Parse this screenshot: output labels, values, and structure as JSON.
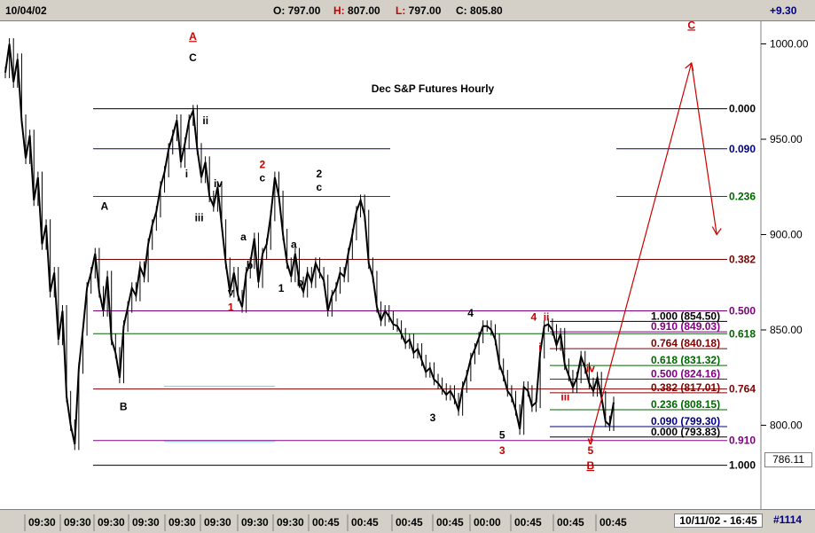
{
  "toolbar": {
    "date": "10/04/02",
    "open_label": "O:",
    "open": "797.00",
    "high_label": "H:",
    "high": "807.00",
    "low_label": "L:",
    "low": "797.00",
    "close_label": "C:",
    "close": "805.80",
    "change": "+9.30"
  },
  "status": {
    "last_price": "786.11",
    "date_range": "10/11/02 - 16:45",
    "bar_count": "#1114"
  },
  "chart_data": {
    "type": "line",
    "title": "Dec S&P Futures Hourly",
    "ylim": [
      770,
      1010
    ],
    "ytick_values": [
      800,
      850,
      900,
      950,
      1000
    ],
    "ytick_labels": [
      "800.00",
      "850.00",
      "900.00",
      "950.00",
      "1000.00"
    ],
    "xtick_labels": [
      "09:30",
      "09:30",
      "09:30",
      "09:30",
      "09:30",
      "09:30",
      "09:30",
      "09:30",
      "00:45",
      "00:45",
      "00:45",
      "00:45",
      "00:00",
      "00:45",
      "00:45",
      "00:45"
    ],
    "series": [
      {
        "values": [
          985,
          1000,
          980,
          992,
          960,
          940,
          952,
          918,
          930,
          895,
          905,
          870,
          880,
          845,
          860,
          815,
          800,
          790,
          830,
          850,
          872,
          880,
          890,
          870,
          860,
          878,
          845,
          838,
          825,
          852,
          862,
          872,
          868,
          883,
          878,
          895,
          905,
          912,
          925,
          933,
          945,
          952,
          960,
          938,
          948,
          960,
          965,
          945,
          930,
          938,
          920,
          915,
          925,
          905,
          885,
          870,
          880,
          868,
          862,
          880,
          885,
          898,
          875,
          890,
          895,
          910,
          930,
          920,
          900,
          885,
          878,
          890,
          875,
          870,
          880,
          875,
          885,
          880,
          876,
          860,
          868,
          872,
          880,
          878,
          890,
          900,
          912,
          918,
          910,
          885,
          878,
          862,
          855,
          860,
          857,
          853,
          852,
          848,
          843,
          845,
          838,
          840,
          834,
          828,
          830,
          824,
          822,
          819,
          816,
          818,
          814,
          808,
          820,
          826,
          835,
          840,
          846,
          852,
          852,
          850,
          845,
          832,
          826,
          818,
          815,
          808,
          798,
          820,
          818,
          810,
          812,
          838,
          852,
          853,
          850,
          842,
          848,
          832,
          826,
          820,
          825,
          836,
          830,
          822,
          818,
          825,
          815,
          802,
          800,
          812
        ]
      }
    ],
    "fib_retracement": [
      {
        "label": "0.000",
        "price": 966,
        "color": "#000000"
      },
      {
        "label": "0.090",
        "price": 945,
        "color": "#000080"
      },
      {
        "label": "0.236",
        "price": 920,
        "color": "#006600"
      },
      {
        "label": "0.382",
        "price": 887,
        "color": "#800000"
      },
      {
        "label": "0.500",
        "price": 860,
        "color": "#800080"
      },
      {
        "label": "0.618",
        "price": 848,
        "color": "#006600"
      },
      {
        "label": "0.764",
        "price": 819,
        "color": "#800000"
      },
      {
        "label": "0.910",
        "price": 792,
        "color": "#800080"
      },
      {
        "label": "1.000",
        "price": 779,
        "color": "#000000"
      }
    ],
    "fib_extension": [
      {
        "label": "1.000 (854.50)",
        "price": 854.5,
        "color": "#000000"
      },
      {
        "label": "0.910 (849.03)",
        "price": 849.03,
        "color": "#800080"
      },
      {
        "label": "0.764 (840.18)",
        "price": 840.18,
        "color": "#800000"
      },
      {
        "label": "0.618 (831.32)",
        "price": 831.32,
        "color": "#006600"
      },
      {
        "label": "0.500 (824.16)",
        "price": 824.16,
        "color": "#800080"
      },
      {
        "label": "0.382 (817.01)",
        "price": 817.01,
        "color": "#800000"
      },
      {
        "label": "0.236 (808.15)",
        "price": 808.15,
        "color": "#006600"
      },
      {
        "label": "0.090 (799.30)",
        "price": 799.3,
        "color": "#000080"
      },
      {
        "label": "0.000 (793.83)",
        "price": 793.83,
        "color": "#000000"
      }
    ],
    "wave_labels": [
      {
        "text": "A",
        "color": "#cc0000",
        "underline": true,
        "x": 30,
        "y": 1002
      },
      {
        "text": "C",
        "color": "#000000",
        "x": 30,
        "y": 991
      },
      {
        "text": "ii",
        "color": "#000000",
        "x": 32,
        "y": 958
      },
      {
        "text": "i",
        "color": "#000000",
        "x": 29,
        "y": 930
      },
      {
        "text": "iv",
        "color": "#000000",
        "x": 34,
        "y": 925
      },
      {
        "text": "iii",
        "color": "#000000",
        "x": 31,
        "y": 907
      },
      {
        "text": "A",
        "color": "#000000",
        "x": 16,
        "y": 913
      },
      {
        "text": "B",
        "color": "#000000",
        "x": 19,
        "y": 808
      },
      {
        "text": "v",
        "color": "#000000",
        "x": 36,
        "y": 868
      },
      {
        "text": "1",
        "color": "#cc0000",
        "x": 36,
        "y": 860
      },
      {
        "text": "2",
        "color": "#cc0000",
        "x": 41,
        "y": 935
      },
      {
        "text": "c",
        "color": "#000000",
        "x": 41,
        "y": 928
      },
      {
        "text": "a",
        "color": "#000000",
        "x": 38,
        "y": 897
      },
      {
        "text": "b",
        "color": "#000000",
        "x": 39,
        "y": 882
      },
      {
        "text": "a",
        "color": "#000000",
        "x": 46,
        "y": 893
      },
      {
        "text": "1",
        "color": "#000000",
        "x": 44,
        "y": 870
      },
      {
        "text": "b",
        "color": "#000000",
        "x": 47,
        "y": 873
      },
      {
        "text": "2",
        "color": "#000000",
        "x": 50,
        "y": 930
      },
      {
        "text": "c",
        "color": "#000000",
        "x": 50,
        "y": 923
      },
      {
        "text": "4",
        "color": "#000000",
        "x": 74,
        "y": 857
      },
      {
        "text": "3",
        "color": "#000000",
        "x": 68,
        "y": 802
      },
      {
        "text": "5",
        "color": "#000000",
        "x": 79,
        "y": 793
      },
      {
        "text": "3",
        "color": "#cc0000",
        "x": 79,
        "y": 785
      },
      {
        "text": "4",
        "color": "#cc0000",
        "x": 84,
        "y": 855
      },
      {
        "text": "ii",
        "color": "#cc0000",
        "x": 86,
        "y": 855
      },
      {
        "text": "i",
        "color": "#cc0000",
        "x": 85,
        "y": 839
      },
      {
        "text": "iii",
        "color": "#cc0000",
        "x": 89,
        "y": 813
      },
      {
        "text": "iv",
        "color": "#cc0000",
        "x": 93,
        "y": 828
      },
      {
        "text": "v",
        "color": "#cc0000",
        "x": 93,
        "y": 790
      },
      {
        "text": "5",
        "color": "#cc0000",
        "x": 93,
        "y": 785
      },
      {
        "text": "B",
        "color": "#cc0000",
        "underline": true,
        "x": 93,
        "y": 777
      },
      {
        "text": "C",
        "color": "#cc0000",
        "underline": true,
        "x": 109,
        "y": 1008
      }
    ],
    "projection": [
      {
        "x": 93,
        "y": 792
      },
      {
        "x": 109,
        "y": 990
      },
      {
        "x": 113,
        "y": 900
      }
    ]
  }
}
